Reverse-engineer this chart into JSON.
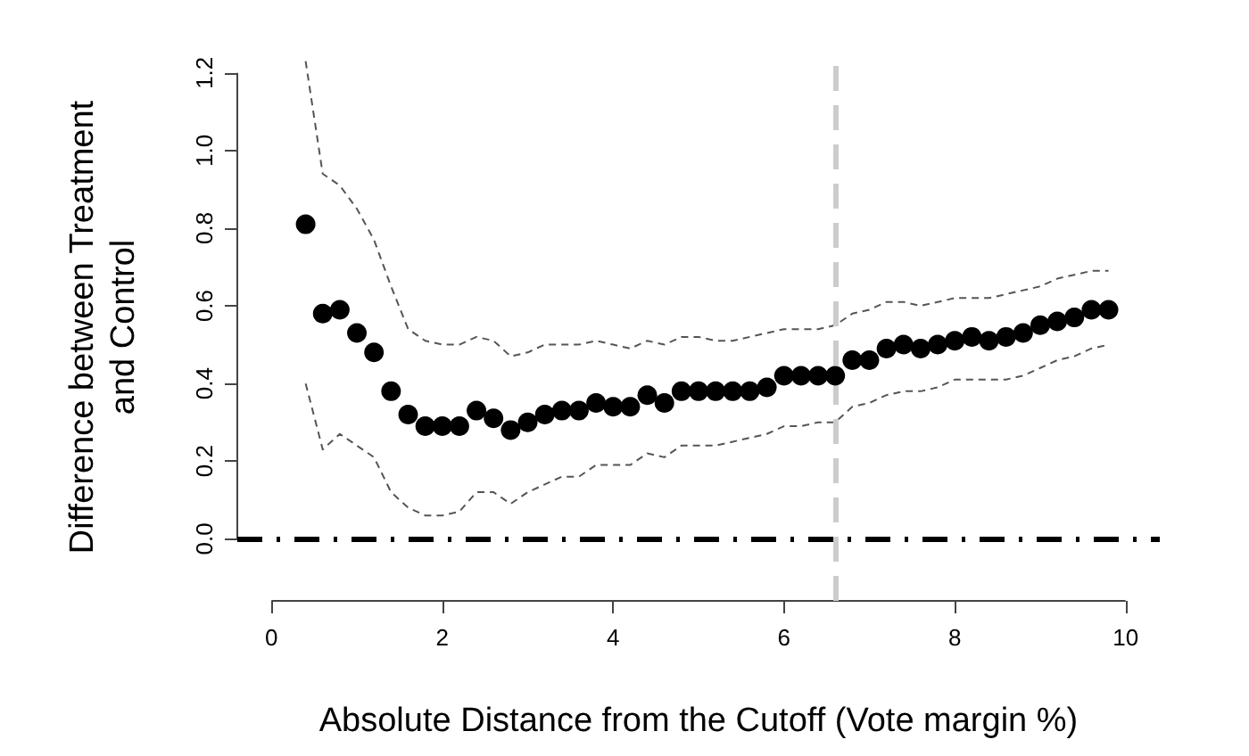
{
  "chart_data": {
    "type": "scatter",
    "xlabel": "Absolute Distance from the Cutoff (Vote margin %)",
    "ylabel": "Difference between Treatment\nand Control",
    "x": [
      0.4,
      0.6,
      0.8,
      1.0,
      1.2,
      1.4,
      1.6,
      1.8,
      2.0,
      2.2,
      2.4,
      2.6,
      2.8,
      3.0,
      3.2,
      3.4,
      3.6,
      3.8,
      4.0,
      4.2,
      4.4,
      4.6,
      4.8,
      5.0,
      5.2,
      5.4,
      5.6,
      5.8,
      6.0,
      6.2,
      6.4,
      6.6,
      6.8,
      7.0,
      7.2,
      7.4,
      7.6,
      7.8,
      8.0,
      8.2,
      8.4,
      8.6,
      8.8,
      9.0,
      9.2,
      9.4,
      9.6,
      9.8
    ],
    "series": [
      {
        "color": "#000000",
        "values": [
          0.81,
          0.58,
          0.59,
          0.53,
          0.48,
          0.38,
          0.32,
          0.29,
          0.29,
          0.29,
          0.33,
          0.31,
          0.28,
          0.3,
          0.32,
          0.33,
          0.33,
          0.35,
          0.34,
          0.34,
          0.37,
          0.35,
          0.38,
          0.38,
          0.38,
          0.38,
          0.38,
          0.39,
          0.42,
          0.42,
          0.42,
          0.42,
          0.46,
          0.46,
          0.49,
          0.5,
          0.49,
          0.5,
          0.51,
          0.52,
          0.51,
          0.52,
          0.53,
          0.55,
          0.56,
          0.57,
          0.59,
          0.59
        ]
      },
      {
        "type": "line",
        "color": "#555555",
        "line_style": "dashed",
        "marker": "none",
        "values": [
          1.23,
          0.94,
          0.91,
          0.85,
          0.77,
          0.65,
          0.54,
          0.51,
          0.5,
          0.5,
          0.52,
          0.51,
          0.47,
          0.48,
          0.5,
          0.5,
          0.5,
          0.51,
          0.5,
          0.49,
          0.51,
          0.5,
          0.52,
          0.52,
          0.51,
          0.51,
          0.52,
          0.53,
          0.54,
          0.54,
          0.54,
          0.55,
          0.58,
          0.59,
          0.61,
          0.61,
          0.6,
          0.61,
          0.62,
          0.62,
          0.62,
          0.63,
          0.64,
          0.65,
          0.67,
          0.68,
          0.69,
          0.69
        ]
      },
      {
        "type": "line",
        "color": "#555555",
        "line_style": "dashed",
        "marker": "none",
        "values": [
          0.4,
          0.23,
          0.27,
          0.24,
          0.21,
          0.12,
          0.08,
          0.06,
          0.06,
          0.07,
          0.12,
          0.12,
          0.09,
          0.12,
          0.14,
          0.16,
          0.16,
          0.19,
          0.19,
          0.19,
          0.22,
          0.21,
          0.24,
          0.24,
          0.24,
          0.25,
          0.26,
          0.27,
          0.29,
          0.29,
          0.3,
          0.3,
          0.34,
          0.35,
          0.37,
          0.38,
          0.38,
          0.39,
          0.41,
          0.41,
          0.41,
          0.41,
          0.42,
          0.44,
          0.46,
          0.47,
          0.49,
          0.5
        ]
      }
    ],
    "marker": "circle",
    "xlim": [
      -0.4,
      10.4
    ],
    "xticks": [
      0,
      2,
      4,
      6,
      8,
      10
    ],
    "ylim": [
      -0.16,
      1.25
    ],
    "yticks": [
      {
        "value": 0,
        "label": "0.0"
      },
      0.2,
      0.4,
      0.6,
      0.8,
      {
        "value": 1,
        "label": "1.0"
      },
      1.2
    ],
    "ref_lines": [
      {
        "axis": "y",
        "value": 0,
        "color": "#000000",
        "line_style": "dashed"
      },
      {
        "axis": "x",
        "value": 6.6,
        "color": "#cccccc",
        "line_style": "dashed"
      }
    ],
    "grid": false
  }
}
